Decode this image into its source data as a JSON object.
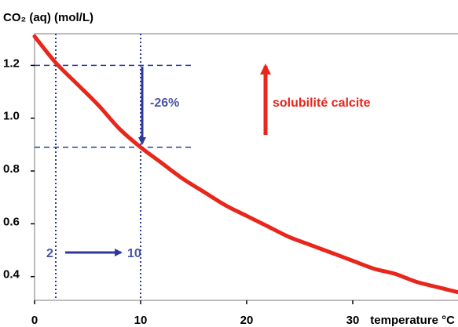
{
  "chart_data": {
    "type": "line",
    "title": "",
    "ylabel": "CO₂ (aq)  (mol/L)",
    "xlabel": "temperature °C",
    "xlim": [
      0,
      40
    ],
    "ylim": [
      0.31,
      1.32
    ],
    "x_ticks": [
      0,
      10,
      20,
      30
    ],
    "x_tick_labels": [
      "0",
      "10",
      "20",
      "30"
    ],
    "y_ticks": [
      0.4,
      0.6,
      0.8,
      1.0,
      1.2
    ],
    "y_tick_labels": [
      "0.4",
      "0.6",
      "0.8",
      "1.0",
      "1.2"
    ],
    "grid": false,
    "series": [
      {
        "color": "#e8261c",
        "x": [
          0,
          2,
          4,
          6,
          8,
          10,
          12,
          14,
          16,
          18,
          20,
          22,
          24,
          26,
          28,
          30,
          32,
          34,
          36,
          38,
          40
        ],
        "y": [
          1.31,
          1.21,
          1.13,
          1.05,
          0.96,
          0.89,
          0.83,
          0.77,
          0.72,
          0.67,
          0.63,
          0.59,
          0.55,
          0.52,
          0.49,
          0.46,
          0.43,
          0.41,
          0.38,
          0.36,
          0.34
        ]
      }
    ],
    "reference_lines": {
      "color": "#2d3a9c",
      "horizontal": [
        {
          "y": 1.2,
          "x_from": 0,
          "x_to": 15
        },
        {
          "y": 0.89,
          "x_from": 0,
          "x_to": 15
        }
      ],
      "vertical": [
        {
          "x": 2
        },
        {
          "x": 10
        }
      ]
    },
    "annotations": {
      "percent_change": "-26%",
      "temp_from": "2",
      "temp_to": "10",
      "solubility_label": "solubilité calcite",
      "blue_color": "#4b54a8",
      "arrow_color": "#2d3a9c",
      "red_color": "#e8261c"
    }
  }
}
